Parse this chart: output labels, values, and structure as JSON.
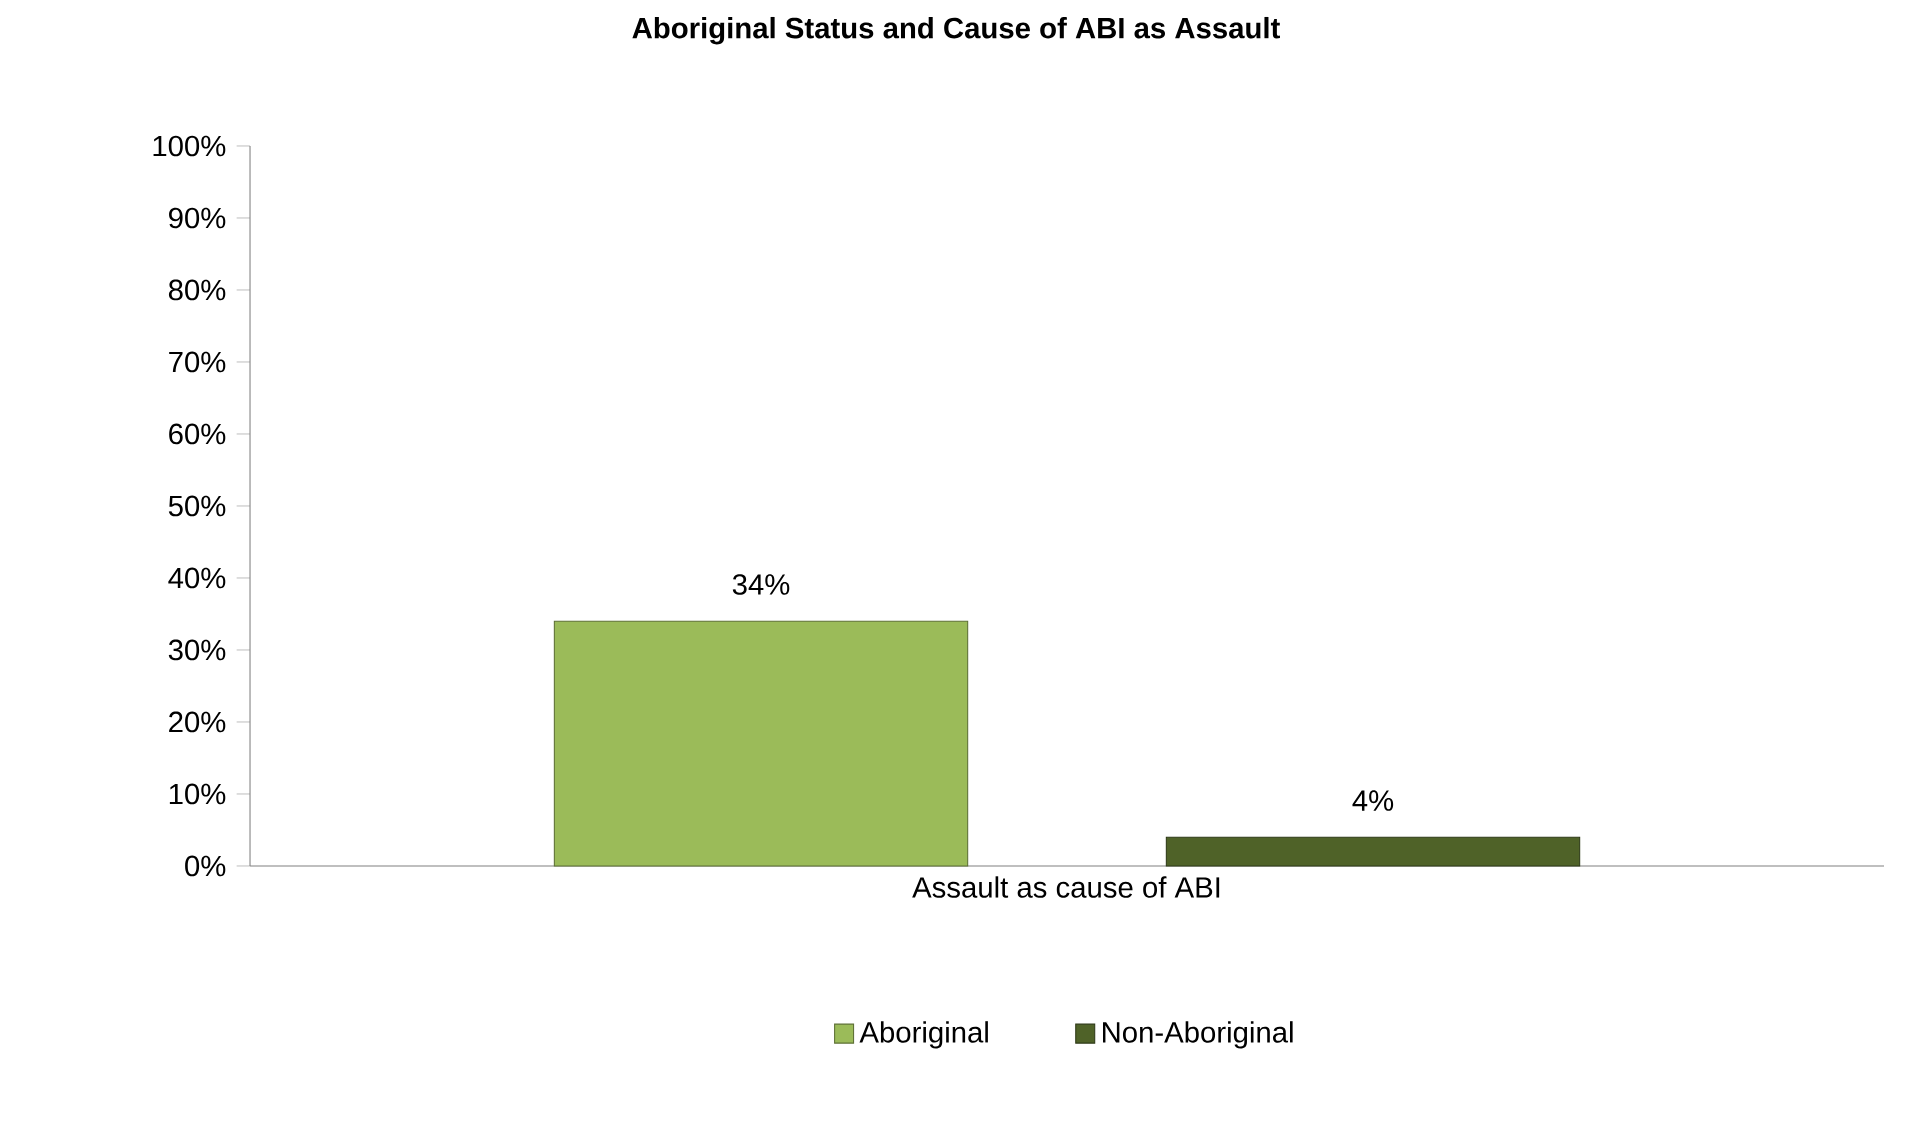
{
  "chart_data": {
    "type": "bar",
    "title": "Aboriginal Status and Cause of ABI as Assault",
    "categories": [
      "Assault as cause of ABI"
    ],
    "series": [
      {
        "name": "Aboriginal",
        "color": "#9bbb59",
        "values": [
          34
        ],
        "value_labels": [
          "34%"
        ]
      },
      {
        "name": "Non-Aboriginal",
        "color": "#4f6228",
        "values": [
          4
        ],
        "value_labels": [
          "4%"
        ]
      }
    ],
    "ylim": [
      0,
      100
    ],
    "yticks": [
      {
        "value": 0,
        "label": "0%"
      },
      {
        "value": 10,
        "label": "10%"
      },
      {
        "value": 20,
        "label": "20%"
      },
      {
        "value": 30,
        "label": "30%"
      },
      {
        "value": 40,
        "label": "40%"
      },
      {
        "value": 50,
        "label": "50%"
      },
      {
        "value": 60,
        "label": "60%"
      },
      {
        "value": 70,
        "label": "70%"
      },
      {
        "value": 80,
        "label": "80%"
      },
      {
        "value": 90,
        "label": "90%"
      },
      {
        "value": 100,
        "label": "100%"
      }
    ],
    "grid": false,
    "legend": "bottom"
  }
}
